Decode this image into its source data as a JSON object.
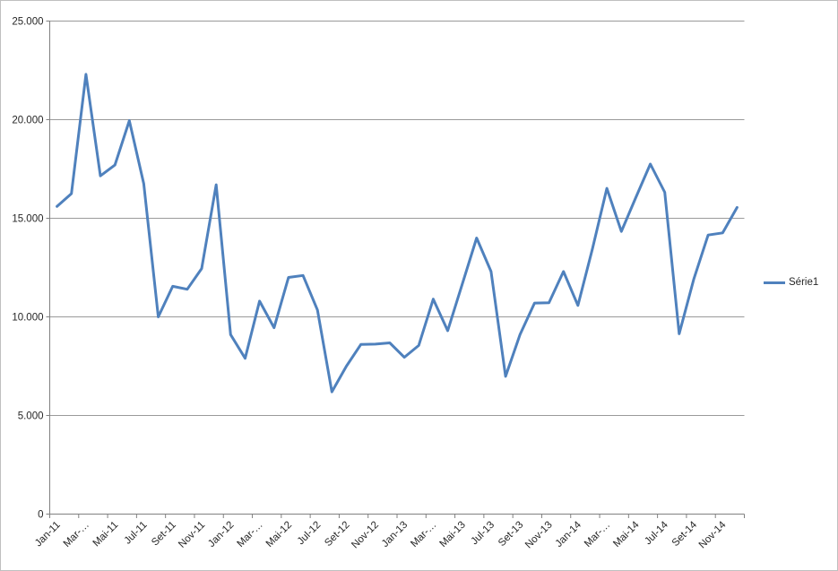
{
  "colors": {
    "series_line": "#4F81BD",
    "gridline": "#9a9a9a",
    "axis_line": "#808080",
    "text": "#262626",
    "chart_border": "#bfbfbf",
    "background": "#ffffff"
  },
  "legend": {
    "series_label": "Série1"
  },
  "chart_data": {
    "type": "line",
    "title": "",
    "xlabel": "",
    "ylabel": "",
    "ylim": [
      0,
      25000
    ],
    "grid": "horizontal",
    "legend_position": "right",
    "points_per_tick_label": 2,
    "y_ticks": [
      {
        "label": "0",
        "value": 0
      },
      {
        "label": "5.000",
        "value": 5000
      },
      {
        "label": "10.000",
        "value": 10000
      },
      {
        "label": "15.000",
        "value": 15000
      },
      {
        "label": "20.000",
        "value": 20000
      },
      {
        "label": "25.000",
        "value": 25000
      }
    ],
    "x_tick_labels": [
      "Jan-11",
      "Mar-…",
      "Mai-11",
      "Jul-11",
      "Set-11",
      "Nov-11",
      "Jan-12",
      "Mar-…",
      "Mai-12",
      "Jul-12",
      "Set-12",
      "Nov-12",
      "Jan-13",
      "Mar-…",
      "Mai-13",
      "Jul-13",
      "Set-13",
      "Nov-13",
      "Jan-14",
      "Mar-…",
      "Mai-14",
      "Jul-14",
      "Set-14",
      "Nov-14"
    ],
    "series": [
      {
        "name": "Série1",
        "color": "#4F81BD",
        "values": [
          15600,
          16250,
          22300,
          17150,
          17700,
          19950,
          16750,
          10000,
          11550,
          11400,
          12450,
          16700,
          9100,
          7900,
          10800,
          9450,
          12000,
          12100,
          10350,
          6200,
          7500,
          8600,
          8620,
          8680,
          7950,
          8550,
          10900,
          9300,
          11650,
          14000,
          12300,
          6980,
          9100,
          10700,
          10720,
          12300,
          10580,
          13450,
          16520,
          14330,
          16050,
          17750,
          16320,
          9140,
          11900,
          14150,
          14260,
          15550
        ]
      }
    ]
  }
}
